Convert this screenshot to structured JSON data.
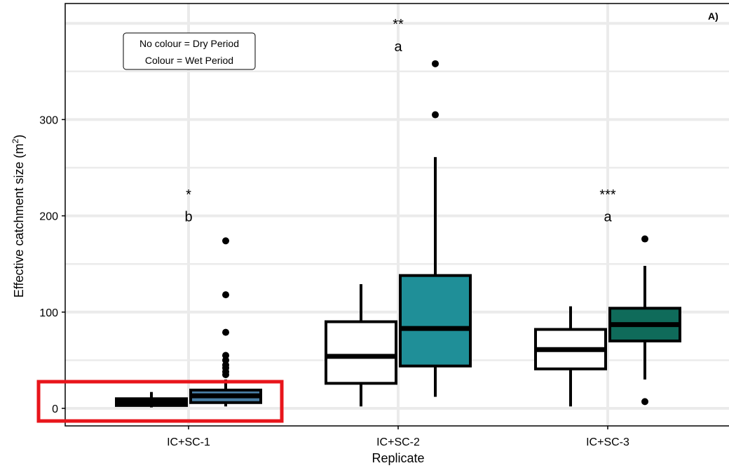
{
  "panel_label": "A)",
  "legend_note": {
    "line1": "No colour = Dry Period",
    "line2": "Colour = Wet Period"
  },
  "colors": {
    "wet_sc1": "#4a7fa5",
    "wet_sc2": "#1f8f98",
    "wet_sc3": "#0f6b5a",
    "dry": "#ffffff",
    "highlight": "#e8151b",
    "grid": "#ebebeb"
  },
  "chart_data": {
    "type": "box",
    "xlabel": "Replicate",
    "ylabel_main": "Effective catchment size  (m",
    "ylabel_sup": "2",
    "ylabel_close": ")",
    "ylim": [
      -18,
      420
    ],
    "y_ticks": [
      0,
      100,
      200,
      300
    ],
    "categories": [
      "IC+SC-1",
      "IC+SC-2",
      "IC+SC-3"
    ],
    "significance": [
      {
        "category": "IC+SC-1",
        "stars": "*",
        "letter": "b",
        "y_stars": 223,
        "y_letter": 200
      },
      {
        "category": "IC+SC-2",
        "stars": "**",
        "letter": "a",
        "y_stars": 400,
        "y_letter": 377
      },
      {
        "category": "IC+SC-3",
        "stars": "***",
        "letter": "a",
        "y_stars": 223,
        "y_letter": 200
      }
    ],
    "boxes": [
      {
        "category": "IC+SC-1",
        "period": "Dry",
        "fill": "#111111",
        "whisker_low": 1,
        "q1": 3,
        "median": 6,
        "q3": 10,
        "whisker_high": 17,
        "outliers": []
      },
      {
        "category": "IC+SC-1",
        "period": "Wet",
        "fill": "#4a7fa5",
        "whisker_low": 2,
        "q1": 6,
        "median": 13,
        "q3": 19,
        "whisker_high": 30,
        "outliers": [
          35,
          38,
          42,
          45,
          50,
          55,
          79,
          118,
          174
        ]
      },
      {
        "category": "IC+SC-2",
        "period": "Dry",
        "fill": "#ffffff",
        "whisker_low": 2,
        "q1": 26,
        "median": 54,
        "q3": 90,
        "whisker_high": 129,
        "outliers": []
      },
      {
        "category": "IC+SC-2",
        "period": "Wet",
        "fill": "#1f8f98",
        "whisker_low": 12,
        "q1": 44,
        "median": 83,
        "q3": 138,
        "whisker_high": 261,
        "outliers": [
          305,
          358
        ]
      },
      {
        "category": "IC+SC-3",
        "period": "Dry",
        "fill": "#ffffff",
        "whisker_low": 2,
        "q1": 41,
        "median": 61,
        "q3": 82,
        "whisker_high": 106,
        "outliers": []
      },
      {
        "category": "IC+SC-3",
        "period": "Wet",
        "fill": "#0f6b5a",
        "whisker_low": 30,
        "q1": 70,
        "median": 87,
        "q3": 104,
        "whisker_high": 148,
        "outliers": [
          7,
          176
        ]
      }
    ],
    "grid": true
  }
}
